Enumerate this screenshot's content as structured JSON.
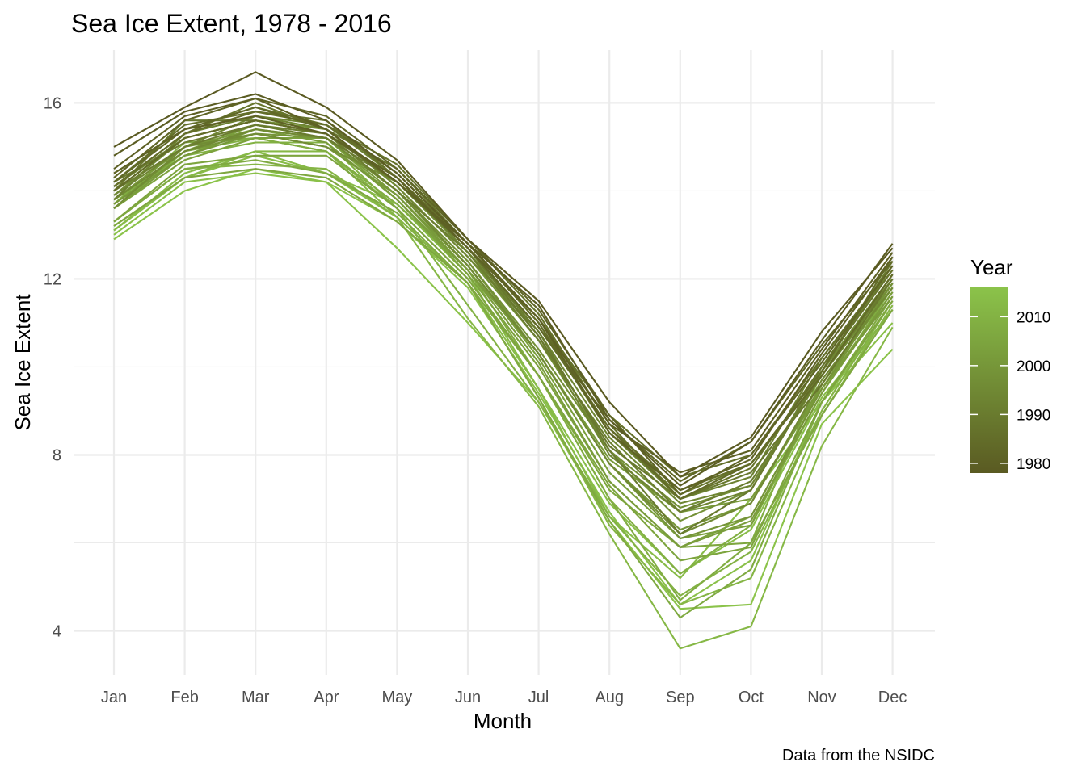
{
  "chart_data": {
    "type": "line",
    "title": "Sea Ice Extent, 1978 - 2016",
    "xlabel": "Month",
    "ylabel": "Sea Ice Extent",
    "caption": "Data from the NSIDC",
    "categories": [
      "Jan",
      "Feb",
      "Mar",
      "Apr",
      "May",
      "Jun",
      "Jul",
      "Aug",
      "Sep",
      "Oct",
      "Nov",
      "Dec"
    ],
    "ylim": [
      3.0,
      17.2
    ],
    "y_ticks": [
      4,
      8,
      12,
      16
    ],
    "grid": true,
    "legend": {
      "title": "Year",
      "placement": "right",
      "type": "colorbar",
      "range": [
        1978,
        2016
      ],
      "ticks": [
        1980,
        1990,
        2000,
        2010
      ],
      "color_low": "#5a5a22",
      "color_high": "#8bc34a"
    },
    "series": [
      {
        "year": 1978,
        "values": [
          15.0,
          15.9,
          16.7,
          15.9,
          14.7,
          12.9,
          11.5,
          9.2,
          7.5,
          8.4,
          10.8,
          12.7
        ]
      },
      {
        "year": 1979,
        "values": [
          14.8,
          15.8,
          16.2,
          15.6,
          14.4,
          12.8,
          11.4,
          8.8,
          7.3,
          8.3,
          10.6,
          12.8
        ]
      },
      {
        "year": 1980,
        "values": [
          14.5,
          15.7,
          16.1,
          15.4,
          14.2,
          12.8,
          11.1,
          8.7,
          7.6,
          8.1,
          10.4,
          12.6
        ]
      },
      {
        "year": 1981,
        "values": [
          14.4,
          15.4,
          15.7,
          15.3,
          14.3,
          12.7,
          11.1,
          8.5,
          7.2,
          7.9,
          10.3,
          12.5
        ]
      },
      {
        "year": 1982,
        "values": [
          14.3,
          15.6,
          16.1,
          15.7,
          14.5,
          12.9,
          11.3,
          8.9,
          7.1,
          8.0,
          10.1,
          12.3
        ]
      },
      {
        "year": 1983,
        "values": [
          14.2,
          15.4,
          15.9,
          15.4,
          14.2,
          12.7,
          10.9,
          8.8,
          7.4,
          8.3,
          10.5,
          12.4
        ]
      },
      {
        "year": 1984,
        "values": [
          14.0,
          15.2,
          15.6,
          15.3,
          14.2,
          12.7,
          10.9,
          8.6,
          7.0,
          7.8,
          9.8,
          12.1
        ]
      },
      {
        "year": 1985,
        "values": [
          14.1,
          15.3,
          15.8,
          15.5,
          14.4,
          12.8,
          11.0,
          8.6,
          7.2,
          7.8,
          9.9,
          12.5
        ]
      },
      {
        "year": 1986,
        "values": [
          14.2,
          15.5,
          15.8,
          15.6,
          14.3,
          12.8,
          11.1,
          8.9,
          7.5,
          8.0,
          10.2,
          12.3
        ]
      },
      {
        "year": 1987,
        "values": [
          14.4,
          15.4,
          15.9,
          15.5,
          14.6,
          12.9,
          11.2,
          8.7,
          7.0,
          7.7,
          10.0,
          12.2
        ]
      },
      {
        "year": 1988,
        "values": [
          14.1,
          15.3,
          16.0,
          15.4,
          14.5,
          12.8,
          11.0,
          8.5,
          7.1,
          7.8,
          9.8,
          12.1
        ]
      },
      {
        "year": 1989,
        "values": [
          14.0,
          15.6,
          15.6,
          15.3,
          14.3,
          12.7,
          10.7,
          8.2,
          7.0,
          7.6,
          9.6,
          12.0
        ]
      },
      {
        "year": 1990,
        "values": [
          14.2,
          15.1,
          15.5,
          15.2,
          14.2,
          12.7,
          10.8,
          8.1,
          6.2,
          7.2,
          9.9,
          12.4
        ]
      },
      {
        "year": 1991,
        "values": [
          14.0,
          15.0,
          15.5,
          15.3,
          14.0,
          12.6,
          10.6,
          8.3,
          6.7,
          7.4,
          9.8,
          12.0
        ]
      },
      {
        "year": 1992,
        "values": [
          13.8,
          15.3,
          15.7,
          15.5,
          14.3,
          12.8,
          11.0,
          8.5,
          7.0,
          7.5,
          10.2,
          12.2
        ]
      },
      {
        "year": 1993,
        "values": [
          14.1,
          15.2,
          15.6,
          15.3,
          14.3,
          12.6,
          10.7,
          8.0,
          6.7,
          7.2,
          10.0,
          12.3
        ]
      },
      {
        "year": 1994,
        "values": [
          13.9,
          15.0,
          15.7,
          15.4,
          14.1,
          12.5,
          10.8,
          8.4,
          6.9,
          7.3,
          9.9,
          12.0
        ]
      },
      {
        "year": 1995,
        "values": [
          13.8,
          14.9,
          15.4,
          15.2,
          14.0,
          12.3,
          10.3,
          7.8,
          6.2,
          6.9,
          9.7,
          11.8
        ]
      },
      {
        "year": 1996,
        "values": [
          13.6,
          15.0,
          15.3,
          15.0,
          14.2,
          12.6,
          10.9,
          8.6,
          7.2,
          7.8,
          9.9,
          12.1
        ]
      },
      {
        "year": 1997,
        "values": [
          13.9,
          15.2,
          15.6,
          15.3,
          14.0,
          12.4,
          10.4,
          8.1,
          6.8,
          7.3,
          9.8,
          11.9
        ]
      },
      {
        "year": 1998,
        "values": [
          14.0,
          15.2,
          15.6,
          15.4,
          14.1,
          12.5,
          10.6,
          8.1,
          6.5,
          7.2,
          9.9,
          12.0
        ]
      },
      {
        "year": 1999,
        "values": [
          13.8,
          14.9,
          15.3,
          15.2,
          14.0,
          12.4,
          10.3,
          7.8,
          6.1,
          6.6,
          9.5,
          11.9
        ]
      },
      {
        "year": 2000,
        "values": [
          13.7,
          14.8,
          15.3,
          15.0,
          13.9,
          12.3,
          10.3,
          7.8,
          6.3,
          6.9,
          9.6,
          11.8
        ]
      },
      {
        "year": 2001,
        "values": [
          13.8,
          15.0,
          15.4,
          15.2,
          13.9,
          12.2,
          10.3,
          7.9,
          6.7,
          7.0,
          9.5,
          11.6
        ]
      },
      {
        "year": 2002,
        "values": [
          13.6,
          14.8,
          15.4,
          15.1,
          13.8,
          12.2,
          10.1,
          7.4,
          5.9,
          6.5,
          9.4,
          11.7
        ]
      },
      {
        "year": 2003,
        "values": [
          13.7,
          14.9,
          15.5,
          15.2,
          14.0,
          12.3,
          10.2,
          7.6,
          6.1,
          6.4,
          9.6,
          11.9
        ]
      },
      {
        "year": 2004,
        "values": [
          13.6,
          14.7,
          15.2,
          15.2,
          13.8,
          12.1,
          10.0,
          7.4,
          5.9,
          6.6,
          9.5,
          11.7
        ]
      },
      {
        "year": 2005,
        "values": [
          13.3,
          14.6,
          14.8,
          14.8,
          13.6,
          12.0,
          9.8,
          7.3,
          5.6,
          5.9,
          9.2,
          11.5
        ]
      },
      {
        "year": 2006,
        "values": [
          13.2,
          14.3,
          14.5,
          14.3,
          13.3,
          11.9,
          9.8,
          7.2,
          5.9,
          6.0,
          8.9,
          11.3
        ]
      },
      {
        "year": 2007,
        "values": [
          13.3,
          14.5,
          14.7,
          14.4,
          13.5,
          11.9,
          9.3,
          6.5,
          4.3,
          5.4,
          9.2,
          11.6
        ]
      },
      {
        "year": 2008,
        "values": [
          13.7,
          15.1,
          15.2,
          14.9,
          13.7,
          12.2,
          9.8,
          7.0,
          4.7,
          6.0,
          9.9,
          12.0
        ]
      },
      {
        "year": 2009,
        "values": [
          13.6,
          14.9,
          15.2,
          14.9,
          13.6,
          12.0,
          9.8,
          7.0,
          5.3,
          6.4,
          9.4,
          11.8
        ]
      },
      {
        "year": 2010,
        "values": [
          13.8,
          14.8,
          15.1,
          15.1,
          13.6,
          11.4,
          9.2,
          6.6,
          4.8,
          5.8,
          9.0,
          11.5
        ]
      },
      {
        "year": 2011,
        "values": [
          13.3,
          14.5,
          14.6,
          14.5,
          13.4,
          11.9,
          9.3,
          6.4,
          4.6,
          5.2,
          8.9,
          11.4
        ]
      },
      {
        "year": 2012,
        "values": [
          13.2,
          14.3,
          14.9,
          14.9,
          13.4,
          11.1,
          9.1,
          6.2,
          3.6,
          4.1,
          8.2,
          10.9
        ]
      },
      {
        "year": 2013,
        "values": [
          13.1,
          14.4,
          14.9,
          14.4,
          13.7,
          12.1,
          9.5,
          6.6,
          5.2,
          7.0,
          9.2,
          11.3
        ]
      },
      {
        "year": 2014,
        "values": [
          13.1,
          14.3,
          14.8,
          14.4,
          13.4,
          11.9,
          9.5,
          6.9,
          5.3,
          6.3,
          9.3,
          11.3
        ]
      },
      {
        "year": 2015,
        "values": [
          13.0,
          14.2,
          14.4,
          14.2,
          13.3,
          11.8,
          9.4,
          6.7,
          4.6,
          5.6,
          9.2,
          11.0
        ]
      },
      {
        "year": 2016,
        "values": [
          12.9,
          14.0,
          14.5,
          14.2,
          12.7,
          11.0,
          9.2,
          6.5,
          4.5,
          4.6,
          8.7,
          10.4
        ]
      }
    ]
  }
}
